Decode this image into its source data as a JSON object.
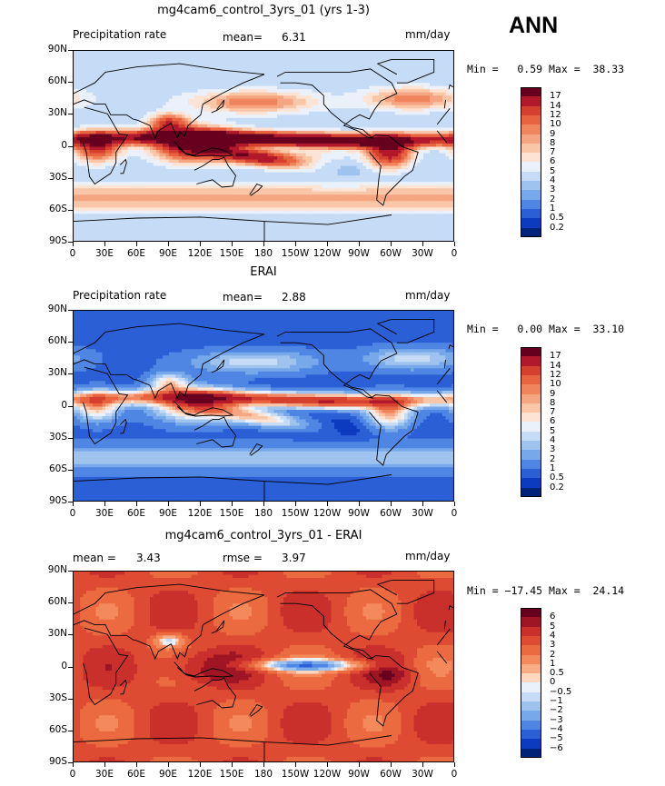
{
  "season": "ANN",
  "panels": [
    {
      "id": "model",
      "title": "mg4cam6_control_3yrs_01 (yrs 1-3)",
      "left_label": "Precipitation rate",
      "stat1_label": "mean=",
      "stat1_value": "6.31",
      "stat2_label": "",
      "stat2_value": "",
      "units": "mm/day",
      "minmax": "Min =   0.59 Max =  38.33",
      "legend_labels": [
        "17",
        "14",
        "12",
        "10",
        "9",
        "8",
        "7",
        "6",
        "5",
        "4",
        "3",
        "2",
        "1",
        "0.5",
        "0.2"
      ],
      "legend_colors": [
        "#67001f",
        "#b2182b",
        "#d6402f",
        "#e8633f",
        "#f0845c",
        "#f5a581",
        "#f9c6a8",
        "#fde3d3",
        "#eaf1fb",
        "#c6dbf5",
        "#9ec3ef",
        "#77a8ea",
        "#4f86e4",
        "#2a5fd6",
        "#0d3bbf",
        "#00237a"
      ],
      "field": "model"
    },
    {
      "id": "obs",
      "title": "ERAI",
      "left_label": "Precipitation rate",
      "stat1_label": "mean=",
      "stat1_value": "2.88",
      "stat2_label": "",
      "stat2_value": "",
      "units": "mm/day",
      "minmax": "Min =   0.00 Max =  33.10",
      "legend_labels": [
        "17",
        "14",
        "12",
        "10",
        "9",
        "8",
        "7",
        "6",
        "5",
        "4",
        "3",
        "2",
        "1",
        "0.5",
        "0.2"
      ],
      "legend_colors": [
        "#67001f",
        "#b2182b",
        "#d6402f",
        "#e8633f",
        "#f0845c",
        "#f5a581",
        "#f9c6a8",
        "#fde3d3",
        "#eaf1fb",
        "#c6dbf5",
        "#9ec3ef",
        "#77a8ea",
        "#4f86e4",
        "#2a5fd6",
        "#0d3bbf",
        "#00237a"
      ],
      "field": "obs"
    },
    {
      "id": "diff",
      "title": "mg4cam6_control_3yrs_01 - ERAI",
      "left_label": "",
      "stat1_label": "mean =",
      "stat1_value": "3.43",
      "stat2_label": "rmse =",
      "stat2_value": "3.97",
      "units": "mm/day",
      "minmax": "Min = −17.45 Max =  24.14",
      "legend_labels": [
        "6",
        "5",
        "4",
        "3",
        "2",
        "1",
        "0.5",
        "0",
        "−0.5",
        "−1",
        "−2",
        "−3",
        "−4",
        "−5",
        "−6"
      ],
      "legend_colors": [
        "#67001f",
        "#a01524",
        "#c9302c",
        "#de4b33",
        "#ec6a40",
        "#f4895b",
        "#f9ad84",
        "#fdd7c0",
        "#eaf1fb",
        "#c6dbf5",
        "#9ec3ef",
        "#77a8ea",
        "#4f86e4",
        "#2a5fd6",
        "#0d3bbf",
        "#00237a"
      ],
      "field": "diff"
    }
  ],
  "axes": {
    "lat_ticks": [
      "90N",
      "60N",
      "30N",
      "0",
      "30S",
      "60S",
      "90S"
    ],
    "lon_ticks": [
      "0",
      "30E",
      "60E",
      "90E",
      "120E",
      "150E",
      "180",
      "150W",
      "120W",
      "90W",
      "60W",
      "30W",
      "0"
    ]
  },
  "chart_data": [
    {
      "type": "heatmap",
      "title": "mg4cam6_control_3yrs_01 (yrs 1-3)",
      "variable": "Precipitation rate",
      "units": "mm/day",
      "mean": 6.31,
      "min": 0.59,
      "max": 38.33,
      "x_range": [
        0,
        360
      ],
      "y_range": [
        -90,
        90
      ],
      "levels": [
        0.2,
        0.5,
        1,
        2,
        3,
        4,
        5,
        6,
        7,
        8,
        9,
        10,
        12,
        14,
        17
      ]
    },
    {
      "type": "heatmap",
      "title": "ERAI",
      "variable": "Precipitation rate",
      "units": "mm/day",
      "mean": 2.88,
      "min": 0.0,
      "max": 33.1,
      "x_range": [
        0,
        360
      ],
      "y_range": [
        -90,
        90
      ],
      "levels": [
        0.2,
        0.5,
        1,
        2,
        3,
        4,
        5,
        6,
        7,
        8,
        9,
        10,
        12,
        14,
        17
      ]
    },
    {
      "type": "heatmap",
      "title": "mg4cam6_control_3yrs_01 - ERAI",
      "units": "mm/day",
      "mean": 3.43,
      "rmse": 3.97,
      "min": -17.45,
      "max": 24.14,
      "x_range": [
        0,
        360
      ],
      "y_range": [
        -90,
        90
      ],
      "levels": [
        -6,
        -5,
        -4,
        -3,
        -2,
        -1,
        -0.5,
        0,
        0.5,
        1,
        2,
        3,
        4,
        5,
        6
      ]
    }
  ]
}
